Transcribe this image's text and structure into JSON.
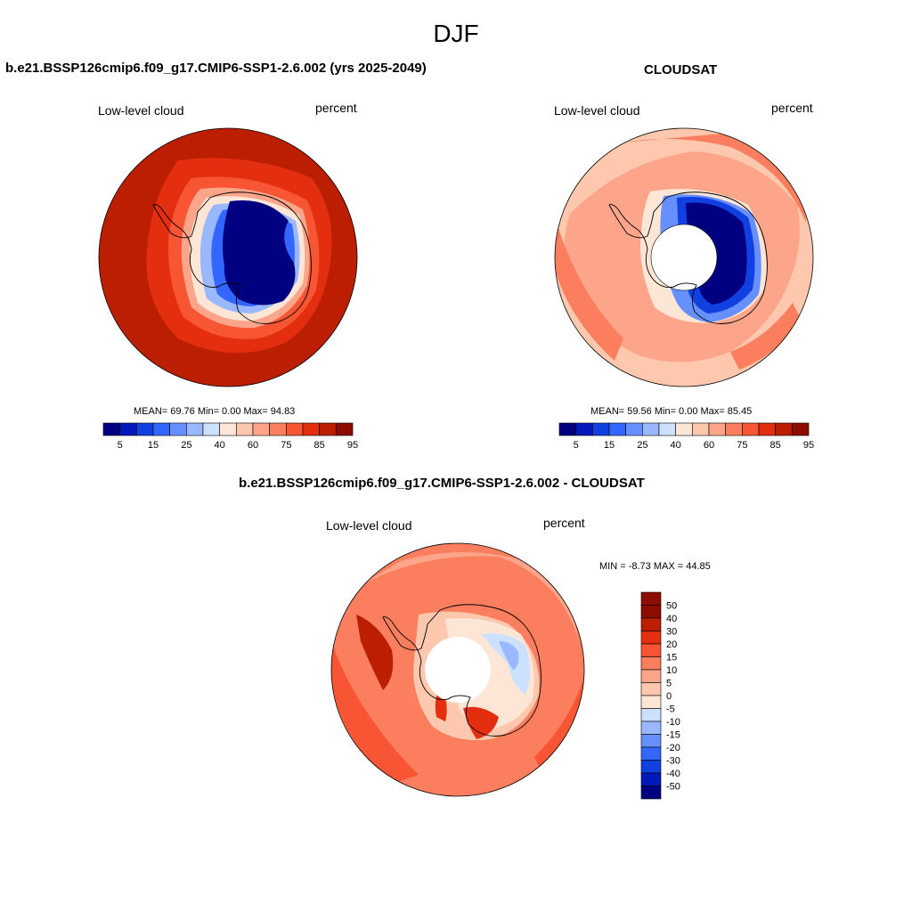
{
  "title": "DJF",
  "palette": {
    "cloud": [
      "#000080",
      "#0019b8",
      "#1040e0",
      "#3366ff",
      "#6690ff",
      "#99b8ff",
      "#cce0ff",
      "#fde6d6",
      "#fdc8ae",
      "#fca58a",
      "#fb7e5e",
      "#f75533",
      "#e32f10",
      "#bc1e02",
      "#8c0c00"
    ],
    "diff": [
      "#000080",
      "#0019b8",
      "#1040e0",
      "#3366ff",
      "#6690ff",
      "#99b8ff",
      "#cce0ff",
      "#fde6d6",
      "#fdc8ae",
      "#fca58a",
      "#fb7e5e",
      "#f75533",
      "#e32f10",
      "#bc1e02",
      "#8c0c00"
    ]
  },
  "panels": [
    {
      "title": "b.e21.BSSP126cmip6.f09_g17.CMIP6-SSP1-2.6.002 (yrs 2025-2049)",
      "left_label": "Low-level cloud",
      "right_label": "percent",
      "stats": "MEAN=  69.76  Min=    0.00  Max=  94.83",
      "colorbar_ticks": [
        "5",
        "15",
        "25",
        "40",
        "60",
        "75",
        "85",
        "95"
      ]
    },
    {
      "title": "CLOUDSAT",
      "left_label": "Low-level cloud",
      "right_label": "percent",
      "stats": "MEAN=  59.56  Min=    0.00  Max=  85.45",
      "colorbar_ticks": [
        "5",
        "15",
        "25",
        "40",
        "60",
        "75",
        "85",
        "95"
      ]
    },
    {
      "title": "b.e21.BSSP126cmip6.f09_g17.CMIP6-SSP1-2.6.002 - CLOUDSAT",
      "left_label": "Low-level cloud",
      "right_label": "percent",
      "stats": "MIN =  -8.73 MAX =  44.85",
      "colorbar_ticks": [
        "50",
        "40",
        "30",
        "20",
        "15",
        "10",
        "5",
        "0",
        "-5",
        "-10",
        "-15",
        "-20",
        "-30",
        "-40",
        "-50"
      ]
    }
  ]
}
